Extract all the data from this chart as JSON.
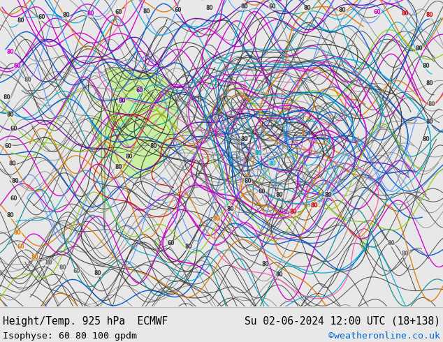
{
  "title_left": "Height/Temp. 925 hPa  ECMWF",
  "title_right": "Su 02-06-2024 12:00 UTC (18+138)",
  "subtitle_left": "Isophyse: 60 80 100 gpdm",
  "subtitle_right": "©weatheronline.co.uk",
  "subtitle_right_color": "#0066cc",
  "bg_color": "#e8e8e8",
  "map_bg": "#f5f5f5",
  "text_color": "#000000",
  "font_size_title": 10.5,
  "font_size_subtitle": 9.5,
  "fig_width": 6.34,
  "fig_height": 4.9,
  "dpi": 100,
  "australia_color": "#c8f0a0",
  "ocean_color": "#f5f5f5",
  "land_border_color": "#888888"
}
